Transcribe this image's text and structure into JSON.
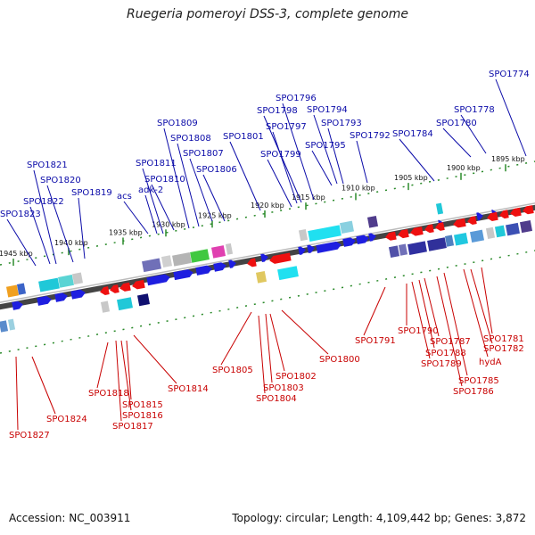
{
  "title": "Ruegeria pomeroyi DSS-3, complete genome",
  "footer": {
    "accession": "Accession: NC_003911",
    "summary": "Topology: circular; Length: 4,109,442 bp; Genes: 3,872"
  },
  "ticks": [
    "1945 kbp",
    "1940 kbp",
    "1935 kbp",
    "1930 kbp",
    "1925 kbp",
    "1920 kbp",
    "1915 kbp",
    "1910 kbp",
    "1905 kbp",
    "1900 kbp",
    "1895 kbp"
  ],
  "top_genes": [
    "SPO1774",
    "SPO1778",
    "SPO1780",
    "SPO1784",
    "SPO1792",
    "SPO1793",
    "SPO1794",
    "SPO1795",
    "SPO1796",
    "SPO1797",
    "SPO1798",
    "SPO1799",
    "SPO1801",
    "SPO1806",
    "SPO1807",
    "SPO1808",
    "SPO1809",
    "SPO1810",
    "SPO1811",
    "adk-2",
    "acs",
    "SPO1819",
    "SPO1820",
    "SPO1821",
    "SPO1822",
    "SPO1823"
  ],
  "bottom_genes": [
    "SPO1781",
    "SPO1782",
    "hydA",
    "SPO1785",
    "SPO1786",
    "SPO1787",
    "SPO1788",
    "SPO1789",
    "SPO1790",
    "SPO1791",
    "SPO1800",
    "SPO1802",
    "SPO1803",
    "SPO1804",
    "SPO1805",
    "SPO1814",
    "SPO1815",
    "SPO1816",
    "SPO1817",
    "SPO1818",
    "SPO1824",
    "SPO1827"
  ]
}
